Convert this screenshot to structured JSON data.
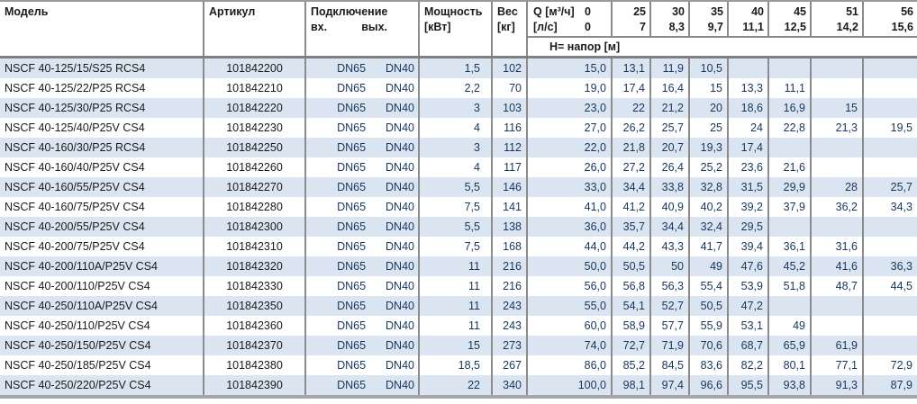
{
  "colors": {
    "row_alt_background": "#dbe5f1",
    "grid_line": "#8c8c8c",
    "data_text": "#17365d"
  },
  "table": {
    "columns": {
      "model": "Модель",
      "article": "Артикул",
      "connection": "Подключение",
      "connection_in": "вх.",
      "connection_out": "вых.",
      "power_line1": "Мощность",
      "power_line2": "[кВт]",
      "weight_line1": "Вес",
      "weight_line2": "[кг]",
      "q_label": "Q [м³/ч]",
      "q_zero": "0",
      "ls_label": "[л/с]",
      "ls_zero": "0",
      "head_label": "H= напор [м]",
      "flow_m3h": [
        "25",
        "30",
        "35",
        "40",
        "45",
        "51",
        "56"
      ],
      "flow_ls": [
        "7",
        "8,3",
        "9,7",
        "11,1",
        "12,5",
        "14,2",
        "15,6"
      ]
    },
    "rows": [
      {
        "model": "NSCF 40-125/15/S25 RCS4",
        "article": "101842200",
        "dn_in": "DN65",
        "dn_out": "DN40",
        "power": "1,5",
        "weight": "102",
        "head": [
          "15,0",
          "13,1",
          "11,9",
          "10,5",
          "",
          "",
          "",
          ""
        ]
      },
      {
        "model": "NSCF 40-125/22/P25 RCS4",
        "article": "101842210",
        "dn_in": "DN65",
        "dn_out": "DN40",
        "power": "2,2",
        "weight": "70",
        "head": [
          "19,0",
          "17,4",
          "16,4",
          "15",
          "13,3",
          "11,1",
          "",
          ""
        ]
      },
      {
        "model": "NSCF 40-125/30/P25 RCS4",
        "article": "101842220",
        "dn_in": "DN65",
        "dn_out": "DN40",
        "power": "3",
        "weight": "103",
        "head": [
          "23,0",
          "22",
          "21,2",
          "20",
          "18,6",
          "16,9",
          "15",
          ""
        ]
      },
      {
        "model": "NSCF 40-125/40/P25V CS4",
        "article": "101842230",
        "dn_in": "DN65",
        "dn_out": "DN40",
        "power": "4",
        "weight": "116",
        "head": [
          "27,0",
          "26,2",
          "25,7",
          "25",
          "24",
          "22,8",
          "21,3",
          "19,5"
        ]
      },
      {
        "model": "NSCF 40-160/30/P25 RCS4",
        "article": "101842250",
        "dn_in": "DN65",
        "dn_out": "DN40",
        "power": "3",
        "weight": "112",
        "head": [
          "22,0",
          "21,8",
          "20,7",
          "19,3",
          "17,4",
          "",
          "",
          ""
        ]
      },
      {
        "model": "NSCF 40-160/40/P25V CS4",
        "article": "101842260",
        "dn_in": "DN65",
        "dn_out": "DN40",
        "power": "4",
        "weight": "117",
        "head": [
          "26,0",
          "27,2",
          "26,4",
          "25,2",
          "23,6",
          "21,6",
          "",
          ""
        ]
      },
      {
        "model": "NSCF 40-160/55/P25V CS4",
        "article": "101842270",
        "dn_in": "DN65",
        "dn_out": "DN40",
        "power": "5,5",
        "weight": "146",
        "head": [
          "33,0",
          "34,4",
          "33,8",
          "32,8",
          "31,5",
          "29,9",
          "28",
          "25,7"
        ]
      },
      {
        "model": "NSCF 40-160/75/P25V CS4",
        "article": "101842280",
        "dn_in": "DN65",
        "dn_out": "DN40",
        "power": "7,5",
        "weight": "141",
        "head": [
          "41,0",
          "41,2",
          "40,9",
          "40,2",
          "39,2",
          "37,9",
          "36,2",
          "34,3"
        ]
      },
      {
        "model": "NSCF 40-200/55/P25V CS4",
        "article": "101842300",
        "dn_in": "DN65",
        "dn_out": "DN40",
        "power": "5,5",
        "weight": "138",
        "head": [
          "36,0",
          "35,7",
          "34,4",
          "32,4",
          "29,5",
          "",
          "",
          ""
        ]
      },
      {
        "model": "NSCF 40-200/75/P25V CS4",
        "article": "101842310",
        "dn_in": "DN65",
        "dn_out": "DN40",
        "power": "7,5",
        "weight": "168",
        "head": [
          "44,0",
          "44,2",
          "43,3",
          "41,7",
          "39,4",
          "36,1",
          "31,6",
          ""
        ]
      },
      {
        "model": "NSCF 40-200/110A/P25V CS4",
        "article": "101842320",
        "dn_in": "DN65",
        "dn_out": "DN40",
        "power": "11",
        "weight": "216",
        "head": [
          "50,0",
          "50,5",
          "50",
          "49",
          "47,6",
          "45,2",
          "41,6",
          "36,3"
        ]
      },
      {
        "model": "NSCF 40-200/110/P25V CS4",
        "article": "101842330",
        "dn_in": "DN65",
        "dn_out": "DN40",
        "power": "11",
        "weight": "216",
        "head": [
          "56,0",
          "56,8",
          "56,3",
          "55,4",
          "53,9",
          "51,8",
          "48,7",
          "44,5"
        ]
      },
      {
        "model": "NSCF 40-250/110A/P25V CS4",
        "article": "101842350",
        "dn_in": "DN65",
        "dn_out": "DN40",
        "power": "11",
        "weight": "243",
        "head": [
          "55,0",
          "54,1",
          "52,7",
          "50,5",
          "47,2",
          "",
          "",
          ""
        ]
      },
      {
        "model": "NSCF 40-250/110/P25V CS4",
        "article": "101842360",
        "dn_in": "DN65",
        "dn_out": "DN40",
        "power": "11",
        "weight": "243",
        "head": [
          "60,0",
          "58,9",
          "57,7",
          "55,9",
          "53,1",
          "49",
          "",
          ""
        ]
      },
      {
        "model": "NSCF 40-250/150/P25V CS4",
        "article": "101842370",
        "dn_in": "DN65",
        "dn_out": "DN40",
        "power": "15",
        "weight": "273",
        "head": [
          "74,0",
          "72,7",
          "71,9",
          "70,6",
          "68,7",
          "65,9",
          "61,9",
          ""
        ]
      },
      {
        "model": "NSCF 40-250/185/P25V CS4",
        "article": "101842380",
        "dn_in": "DN65",
        "dn_out": "DN40",
        "power": "18,5",
        "weight": "267",
        "head": [
          "86,0",
          "85,2",
          "84,5",
          "83,6",
          "82,2",
          "80,1",
          "77,1",
          "72,9"
        ]
      },
      {
        "model": "NSCF 40-250/220/P25V CS4",
        "article": "101842390",
        "dn_in": "DN65",
        "dn_out": "DN40",
        "power": "22",
        "weight": "340",
        "head": [
          "100,0",
          "98,1",
          "97,4",
          "96,6",
          "95,5",
          "93,8",
          "91,3",
          "87,9"
        ]
      }
    ]
  }
}
